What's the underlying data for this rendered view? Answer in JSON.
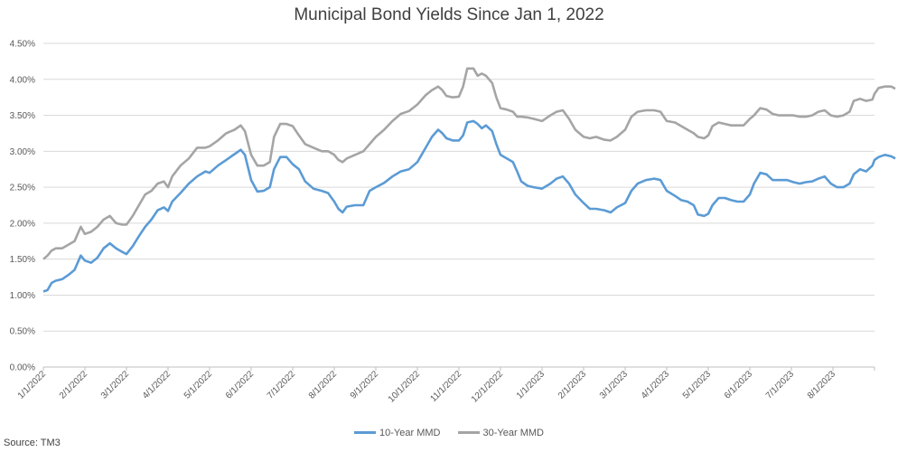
{
  "chart_data": {
    "type": "line",
    "title": "Municipal Bond Yields Since Jan 1, 2022",
    "source": "Source: TM3",
    "xlabel": "",
    "ylabel": "",
    "ylim": [
      0,
      4.5
    ],
    "y_ticks": [
      "0.00%",
      "0.50%",
      "1.00%",
      "1.50%",
      "2.00%",
      "2.50%",
      "3.00%",
      "3.50%",
      "4.00%",
      "4.50%"
    ],
    "y_tick_values": [
      0,
      0.5,
      1.0,
      1.5,
      2.0,
      2.5,
      3.0,
      3.5,
      4.0,
      4.5
    ],
    "x_ticks": [
      "1/1/2022",
      "2/1/2022",
      "3/1/2022",
      "4/1/2022",
      "5/1/2022",
      "6/1/2022",
      "7/1/2022",
      "8/1/2022",
      "9/1/2022",
      "10/1/2022",
      "11/1/2022",
      "12/1/2022",
      "1/1/2023",
      "2/1/2023",
      "3/1/2023",
      "4/1/2023",
      "5/1/2023",
      "6/1/2023",
      "7/1/2023",
      "8/1/2023"
    ],
    "x_tick_months": [
      0,
      1,
      2,
      3,
      4,
      5,
      6,
      7,
      8,
      9,
      10,
      11,
      12,
      13,
      14,
      15,
      16,
      17,
      18,
      19
    ],
    "x_range_months": [
      0,
      20
    ],
    "grid": true,
    "legend_position": "bottom",
    "series": [
      {
        "name": "10-Year MMD",
        "color": "#5b9bd5",
        "points": [
          [
            0,
            1.05
          ],
          [
            0.1,
            1.07
          ],
          [
            0.2,
            1.17
          ],
          [
            0.3,
            1.2
          ],
          [
            0.45,
            1.22
          ],
          [
            0.6,
            1.28
          ],
          [
            0.75,
            1.35
          ],
          [
            0.9,
            1.55
          ],
          [
            1.0,
            1.48
          ],
          [
            1.15,
            1.45
          ],
          [
            1.3,
            1.52
          ],
          [
            1.45,
            1.65
          ],
          [
            1.6,
            1.72
          ],
          [
            1.75,
            1.65
          ],
          [
            1.9,
            1.6
          ],
          [
            2.0,
            1.57
          ],
          [
            2.15,
            1.68
          ],
          [
            2.3,
            1.82
          ],
          [
            2.45,
            1.95
          ],
          [
            2.6,
            2.05
          ],
          [
            2.75,
            2.18
          ],
          [
            2.9,
            2.22
          ],
          [
            3.0,
            2.17
          ],
          [
            3.1,
            2.3
          ],
          [
            3.3,
            2.42
          ],
          [
            3.5,
            2.55
          ],
          [
            3.7,
            2.65
          ],
          [
            3.9,
            2.72
          ],
          [
            4.0,
            2.7
          ],
          [
            4.2,
            2.8
          ],
          [
            4.4,
            2.88
          ],
          [
            4.6,
            2.96
          ],
          [
            4.75,
            3.02
          ],
          [
            4.85,
            2.95
          ],
          [
            5.0,
            2.6
          ],
          [
            5.15,
            2.44
          ],
          [
            5.3,
            2.45
          ],
          [
            5.45,
            2.5
          ],
          [
            5.55,
            2.75
          ],
          [
            5.7,
            2.92
          ],
          [
            5.85,
            2.92
          ],
          [
            6.0,
            2.82
          ],
          [
            6.15,
            2.75
          ],
          [
            6.3,
            2.58
          ],
          [
            6.5,
            2.48
          ],
          [
            6.7,
            2.45
          ],
          [
            6.85,
            2.42
          ],
          [
            7.0,
            2.3
          ],
          [
            7.1,
            2.2
          ],
          [
            7.2,
            2.15
          ],
          [
            7.3,
            2.23
          ],
          [
            7.5,
            2.25
          ],
          [
            7.7,
            2.25
          ],
          [
            7.85,
            2.45
          ],
          [
            8.0,
            2.5
          ],
          [
            8.2,
            2.56
          ],
          [
            8.4,
            2.65
          ],
          [
            8.6,
            2.72
          ],
          [
            8.8,
            2.75
          ],
          [
            9.0,
            2.85
          ],
          [
            9.2,
            3.05
          ],
          [
            9.35,
            3.2
          ],
          [
            9.5,
            3.3
          ],
          [
            9.6,
            3.25
          ],
          [
            9.7,
            3.18
          ],
          [
            9.85,
            3.15
          ],
          [
            10.0,
            3.15
          ],
          [
            10.1,
            3.22
          ],
          [
            10.2,
            3.4
          ],
          [
            10.35,
            3.42
          ],
          [
            10.45,
            3.38
          ],
          [
            10.55,
            3.32
          ],
          [
            10.65,
            3.36
          ],
          [
            10.8,
            3.28
          ],
          [
            10.9,
            3.1
          ],
          [
            11.0,
            2.95
          ],
          [
            11.15,
            2.9
          ],
          [
            11.3,
            2.85
          ],
          [
            11.4,
            2.72
          ],
          [
            11.5,
            2.58
          ],
          [
            11.65,
            2.52
          ],
          [
            11.8,
            2.5
          ],
          [
            12.0,
            2.48
          ],
          [
            12.2,
            2.55
          ],
          [
            12.35,
            2.62
          ],
          [
            12.5,
            2.65
          ],
          [
            12.65,
            2.55
          ],
          [
            12.8,
            2.4
          ],
          [
            13.0,
            2.28
          ],
          [
            13.15,
            2.2
          ],
          [
            13.3,
            2.2
          ],
          [
            13.5,
            2.18
          ],
          [
            13.65,
            2.15
          ],
          [
            13.8,
            2.22
          ],
          [
            14.0,
            2.28
          ],
          [
            14.15,
            2.45
          ],
          [
            14.3,
            2.55
          ],
          [
            14.5,
            2.6
          ],
          [
            14.7,
            2.62
          ],
          [
            14.85,
            2.6
          ],
          [
            15.0,
            2.45
          ],
          [
            15.2,
            2.38
          ],
          [
            15.35,
            2.32
          ],
          [
            15.5,
            2.3
          ],
          [
            15.65,
            2.25
          ],
          [
            15.75,
            2.12
          ],
          [
            15.9,
            2.1
          ],
          [
            16.0,
            2.13
          ],
          [
            16.1,
            2.25
          ],
          [
            16.25,
            2.35
          ],
          [
            16.4,
            2.35
          ],
          [
            16.55,
            2.32
          ],
          [
            16.7,
            2.3
          ],
          [
            16.85,
            2.3
          ],
          [
            17.0,
            2.4
          ],
          [
            17.1,
            2.55
          ],
          [
            17.25,
            2.7
          ],
          [
            17.4,
            2.68
          ],
          [
            17.55,
            2.6
          ],
          [
            17.7,
            2.6
          ],
          [
            17.9,
            2.6
          ],
          [
            18.05,
            2.57
          ],
          [
            18.2,
            2.55
          ],
          [
            18.35,
            2.57
          ],
          [
            18.5,
            2.58
          ],
          [
            18.65,
            2.62
          ],
          [
            18.8,
            2.65
          ],
          [
            18.95,
            2.55
          ],
          [
            19.1,
            2.5
          ],
          [
            19.25,
            2.5
          ],
          [
            19.4,
            2.55
          ],
          [
            19.5,
            2.68
          ],
          [
            19.65,
            2.75
          ],
          [
            19.8,
            2.72
          ],
          [
            19.95,
            2.8
          ],
          [
            20.0,
            2.88
          ],
          [
            20.1,
            2.92
          ],
          [
            20.25,
            2.95
          ],
          [
            20.4,
            2.93
          ],
          [
            20.5,
            2.9
          ]
        ]
      },
      {
        "name": "30-Year MMD",
        "color": "#a5a5a5",
        "points": [
          [
            0,
            1.5
          ],
          [
            0.1,
            1.55
          ],
          [
            0.2,
            1.62
          ],
          [
            0.3,
            1.65
          ],
          [
            0.45,
            1.65
          ],
          [
            0.6,
            1.7
          ],
          [
            0.75,
            1.75
          ],
          [
            0.9,
            1.95
          ],
          [
            1.0,
            1.85
          ],
          [
            1.15,
            1.88
          ],
          [
            1.3,
            1.95
          ],
          [
            1.45,
            2.05
          ],
          [
            1.6,
            2.1
          ],
          [
            1.75,
            2.0
          ],
          [
            1.9,
            1.98
          ],
          [
            2.0,
            1.98
          ],
          [
            2.15,
            2.1
          ],
          [
            2.3,
            2.25
          ],
          [
            2.45,
            2.4
          ],
          [
            2.6,
            2.45
          ],
          [
            2.75,
            2.55
          ],
          [
            2.9,
            2.58
          ],
          [
            3.0,
            2.5
          ],
          [
            3.1,
            2.65
          ],
          [
            3.3,
            2.8
          ],
          [
            3.5,
            2.9
          ],
          [
            3.7,
            3.05
          ],
          [
            3.9,
            3.05
          ],
          [
            4.0,
            3.07
          ],
          [
            4.2,
            3.15
          ],
          [
            4.4,
            3.25
          ],
          [
            4.6,
            3.3
          ],
          [
            4.75,
            3.36
          ],
          [
            4.85,
            3.28
          ],
          [
            5.0,
            2.95
          ],
          [
            5.15,
            2.8
          ],
          [
            5.3,
            2.8
          ],
          [
            5.45,
            2.85
          ],
          [
            5.55,
            3.2
          ],
          [
            5.7,
            3.38
          ],
          [
            5.85,
            3.38
          ],
          [
            6.0,
            3.35
          ],
          [
            6.15,
            3.22
          ],
          [
            6.3,
            3.1
          ],
          [
            6.5,
            3.05
          ],
          [
            6.7,
            3.0
          ],
          [
            6.85,
            3.0
          ],
          [
            7.0,
            2.95
          ],
          [
            7.1,
            2.88
          ],
          [
            7.2,
            2.85
          ],
          [
            7.3,
            2.9
          ],
          [
            7.5,
            2.95
          ],
          [
            7.7,
            3.0
          ],
          [
            7.85,
            3.1
          ],
          [
            8.0,
            3.2
          ],
          [
            8.2,
            3.3
          ],
          [
            8.4,
            3.42
          ],
          [
            8.6,
            3.52
          ],
          [
            8.8,
            3.56
          ],
          [
            9.0,
            3.65
          ],
          [
            9.2,
            3.78
          ],
          [
            9.35,
            3.85
          ],
          [
            9.5,
            3.9
          ],
          [
            9.6,
            3.85
          ],
          [
            9.7,
            3.77
          ],
          [
            9.85,
            3.75
          ],
          [
            10.0,
            3.76
          ],
          [
            10.1,
            3.9
          ],
          [
            10.2,
            4.15
          ],
          [
            10.35,
            4.15
          ],
          [
            10.45,
            4.05
          ],
          [
            10.55,
            4.08
          ],
          [
            10.65,
            4.05
          ],
          [
            10.8,
            3.95
          ],
          [
            10.9,
            3.75
          ],
          [
            11.0,
            3.6
          ],
          [
            11.15,
            3.58
          ],
          [
            11.3,
            3.55
          ],
          [
            11.4,
            3.48
          ],
          [
            11.5,
            3.48
          ],
          [
            11.65,
            3.47
          ],
          [
            11.8,
            3.45
          ],
          [
            12.0,
            3.42
          ],
          [
            12.2,
            3.5
          ],
          [
            12.35,
            3.55
          ],
          [
            12.5,
            3.57
          ],
          [
            12.65,
            3.45
          ],
          [
            12.8,
            3.3
          ],
          [
            13.0,
            3.2
          ],
          [
            13.15,
            3.18
          ],
          [
            13.3,
            3.2
          ],
          [
            13.5,
            3.16
          ],
          [
            13.65,
            3.15
          ],
          [
            13.8,
            3.2
          ],
          [
            14.0,
            3.3
          ],
          [
            14.15,
            3.48
          ],
          [
            14.3,
            3.55
          ],
          [
            14.5,
            3.57
          ],
          [
            14.7,
            3.57
          ],
          [
            14.85,
            3.55
          ],
          [
            15.0,
            3.42
          ],
          [
            15.2,
            3.4
          ],
          [
            15.35,
            3.35
          ],
          [
            15.5,
            3.3
          ],
          [
            15.65,
            3.25
          ],
          [
            15.75,
            3.2
          ],
          [
            15.9,
            3.18
          ],
          [
            16.0,
            3.22
          ],
          [
            16.1,
            3.35
          ],
          [
            16.25,
            3.4
          ],
          [
            16.4,
            3.38
          ],
          [
            16.55,
            3.36
          ],
          [
            16.7,
            3.36
          ],
          [
            16.85,
            3.36
          ],
          [
            17.0,
            3.45
          ],
          [
            17.1,
            3.5
          ],
          [
            17.25,
            3.6
          ],
          [
            17.4,
            3.58
          ],
          [
            17.55,
            3.52
          ],
          [
            17.7,
            3.5
          ],
          [
            17.9,
            3.5
          ],
          [
            18.05,
            3.5
          ],
          [
            18.2,
            3.48
          ],
          [
            18.35,
            3.48
          ],
          [
            18.5,
            3.5
          ],
          [
            18.65,
            3.55
          ],
          [
            18.8,
            3.57
          ],
          [
            18.95,
            3.5
          ],
          [
            19.1,
            3.48
          ],
          [
            19.25,
            3.5
          ],
          [
            19.4,
            3.55
          ],
          [
            19.5,
            3.7
          ],
          [
            19.65,
            3.73
          ],
          [
            19.8,
            3.7
          ],
          [
            19.95,
            3.72
          ],
          [
            20.0,
            3.8
          ],
          [
            20.1,
            3.88
          ],
          [
            20.25,
            3.9
          ],
          [
            20.4,
            3.9
          ],
          [
            20.5,
            3.87
          ]
        ]
      }
    ]
  }
}
